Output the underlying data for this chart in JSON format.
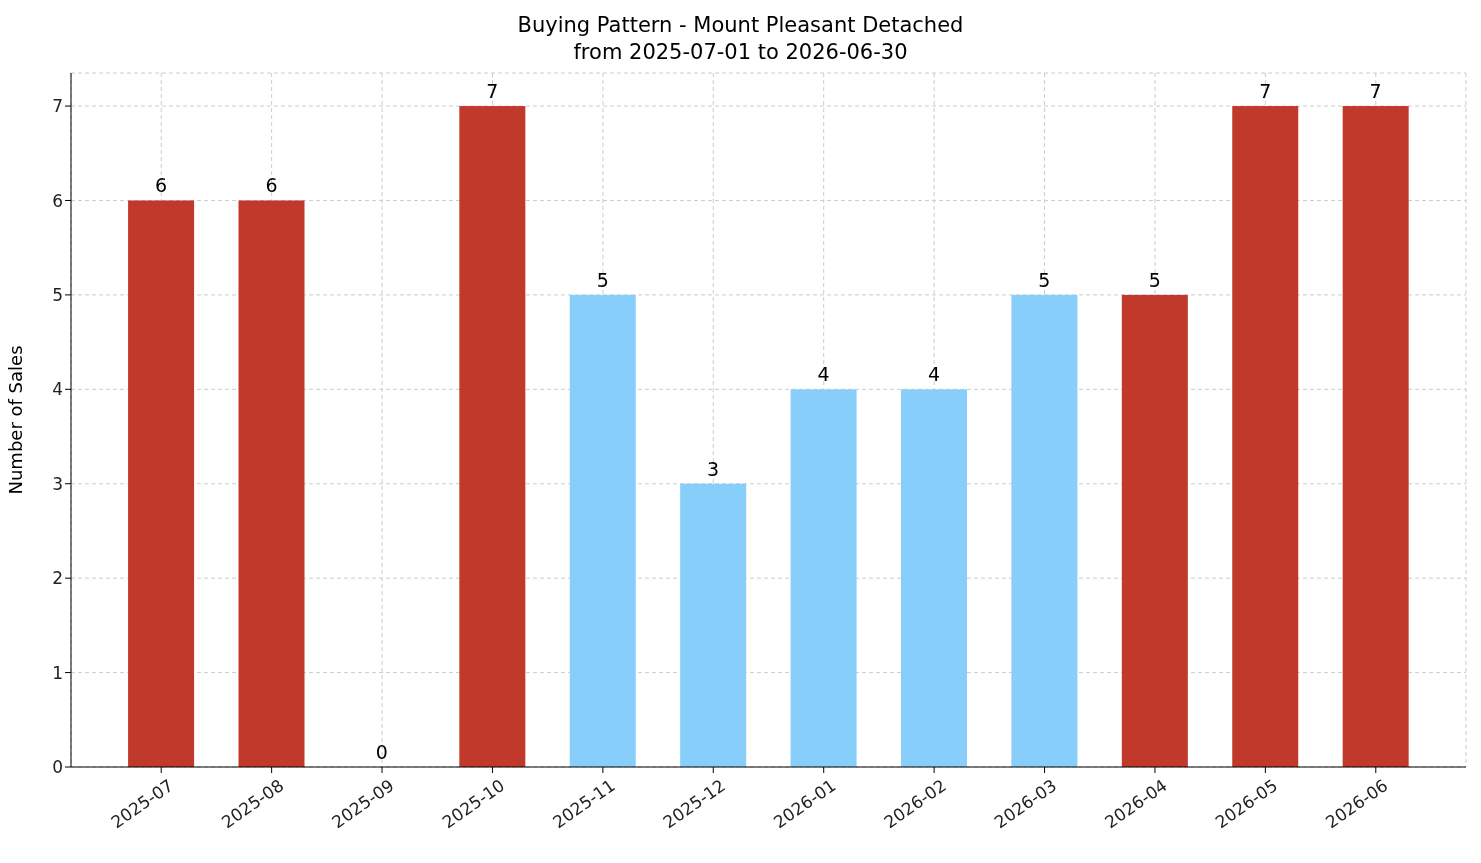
{
  "chart_data": {
    "type": "bar",
    "title": "Buying Pattern - Mount Pleasant Detached\nfrom 2025-07-01 to 2026-06-30",
    "ylabel": "Number of Sales",
    "categories": [
      "2025-07",
      "2025-08",
      "2025-09",
      "2025-10",
      "2025-11",
      "2025-12",
      "2026-01",
      "2026-02",
      "2026-03",
      "2026-04",
      "2026-05",
      "2026-06"
    ],
    "values": [
      6,
      6,
      0,
      7,
      5,
      3,
      4,
      4,
      5,
      5,
      7,
      7
    ],
    "colors": [
      "#c0392b",
      "#c0392b",
      "#c0392b",
      "#c0392b",
      "#87cefa",
      "#87cefa",
      "#87cefa",
      "#87cefa",
      "#87cefa",
      "#c0392b",
      "#c0392b",
      "#c0392b"
    ],
    "ylim": [
      0,
      7.35
    ],
    "yticks": [
      0,
      1,
      2,
      3,
      4,
      5,
      6,
      7
    ],
    "grid": true,
    "data_labels": true
  }
}
